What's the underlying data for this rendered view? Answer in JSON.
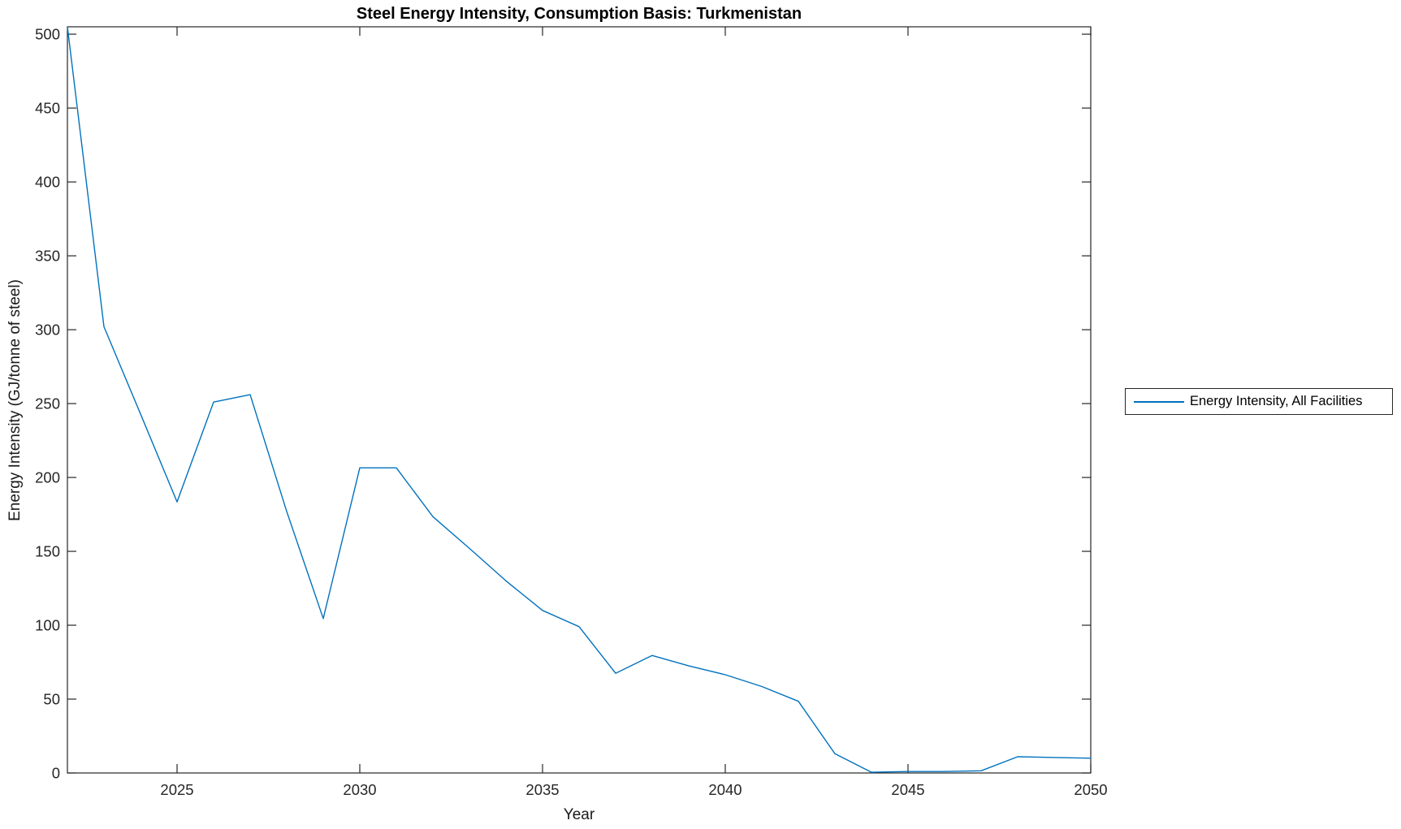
{
  "figure": {
    "background": "#ffffff"
  },
  "chart_data": {
    "type": "line",
    "title": "Steel Energy Intensity, Consumption Basis: Turkmenistan",
    "xlabel": "Year",
    "ylabel": "Energy Intensity (GJ/tonne of steel)",
    "x": [
      2022,
      2023,
      2024,
      2025,
      2026,
      2027,
      2028,
      2029,
      2030,
      2031,
      2032,
      2033,
      2034,
      2035,
      2036,
      2037,
      2038,
      2039,
      2040,
      2041,
      2042,
      2043,
      2044,
      2045,
      2046,
      2047,
      2048,
      2049,
      2050
    ],
    "series": [
      {
        "name": "Energy Intensity, All Facilities",
        "color": "#0072BD",
        "values": [
          505,
          302,
          243,
          183.5,
          251,
          256,
          177,
          104.5,
          206.5,
          206.5,
          173.5,
          152,
          130,
          110,
          99,
          67.5,
          79.5,
          72.5,
          66.5,
          58.5,
          48.5,
          13,
          0.5,
          1,
          1,
          1.5,
          11,
          10.5,
          10
        ]
      }
    ],
    "xlim": [
      2022,
      2050
    ],
    "ylim": [
      0,
      505
    ],
    "xticks": [
      2025,
      2030,
      2035,
      2040,
      2045,
      2050
    ],
    "yticks": [
      0,
      50,
      100,
      150,
      200,
      250,
      300,
      350,
      400,
      450,
      500
    ],
    "grid": false,
    "legend_position": "right-outside"
  },
  "legend": {
    "entries": [
      {
        "label": "Energy Intensity, All Facilities",
        "color": "#0072BD"
      }
    ]
  },
  "colors": {
    "line": "#0072BD",
    "axis": "#262626",
    "tick_text": "#262626",
    "title_text": "#000000"
  }
}
